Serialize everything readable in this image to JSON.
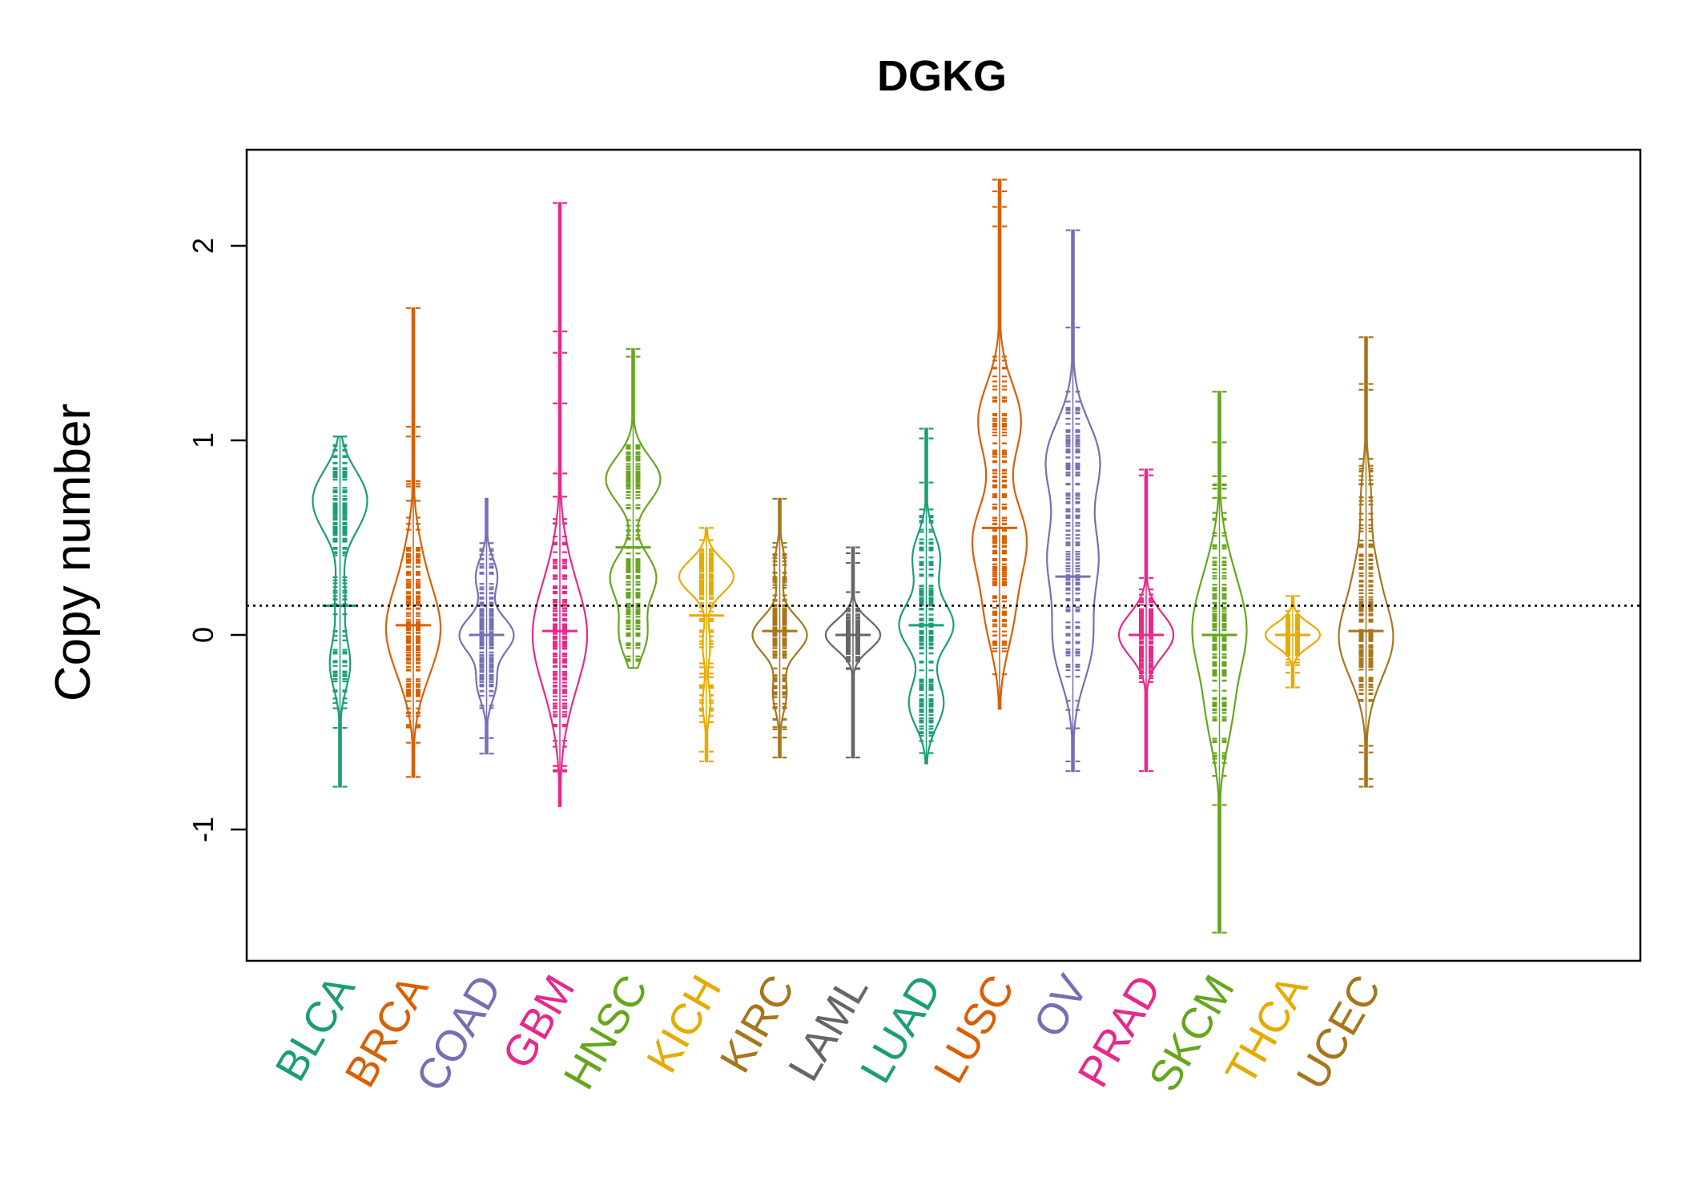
{
  "chart_data": {
    "type": "beanplot",
    "title": "DGKG",
    "xlabel": "",
    "ylabel": "Copy number",
    "ylim": [
      -1.65,
      2.5
    ],
    "yticks": [
      -1,
      0,
      1,
      2
    ],
    "reference_line": 0.15,
    "grid": false,
    "legend": "none",
    "categories": [
      "BLCA",
      "BRCA",
      "COAD",
      "GBM",
      "HNSC",
      "KICH",
      "KIRC",
      "LAML",
      "LUAD",
      "LUSC",
      "OV",
      "PRAD",
      "SKCM",
      "THCA",
      "UCEC"
    ],
    "colors": [
      "#1b9e77",
      "#d95f02",
      "#7570b3",
      "#e7298a",
      "#66a61e",
      "#e6ab02",
      "#a6761d",
      "#666666",
      "#1b9e77",
      "#d95f02",
      "#7570b3",
      "#e7298a",
      "#66a61e",
      "#e6ab02",
      "#a6761d"
    ],
    "series": [
      {
        "category": "BLCA",
        "min": -0.78,
        "max": 1.02,
        "median": 0.15,
        "outliers": [
          1.02,
          0.97,
          -0.78
        ],
        "density_modes": [
          [
            0.75,
            0.45
          ],
          [
            0.6,
            0.35
          ],
          [
            0.2,
            0.12
          ],
          [
            -0.15,
            0.25
          ]
        ]
      },
      {
        "category": "BRCA",
        "min": -0.73,
        "max": 1.68,
        "median": 0.05,
        "outliers": [
          1.68,
          1.07,
          1.02,
          -0.73
        ],
        "density_modes": [
          [
            0.0,
            1.0
          ],
          [
            0.15,
            0.7
          ],
          [
            0.4,
            0.4
          ],
          [
            -0.2,
            0.5
          ]
        ]
      },
      {
        "category": "COAD",
        "min": -0.61,
        "max": 0.7,
        "median": 0.0,
        "outliers": [
          -0.61,
          -0.53
        ],
        "density_modes": [
          [
            0.0,
            1.0
          ],
          [
            0.3,
            0.4
          ],
          [
            -0.25,
            0.35
          ]
        ]
      },
      {
        "category": "GBM",
        "min": -0.88,
        "max": 2.22,
        "median": 0.02,
        "outliers": [
          2.22,
          1.56,
          1.45,
          1.19,
          0.83
        ],
        "density_modes": [
          [
            0.0,
            1.0
          ],
          [
            0.3,
            0.3
          ],
          [
            -0.3,
            0.3
          ]
        ]
      },
      {
        "category": "HNSC",
        "min": -0.17,
        "max": 1.47,
        "median": 0.45,
        "outliers": [
          1.47,
          1.43
        ],
        "density_modes": [
          [
            0.8,
            0.6
          ],
          [
            0.3,
            0.5
          ],
          [
            0.0,
            0.3
          ]
        ]
      },
      {
        "category": "KICH",
        "min": -0.65,
        "max": 0.55,
        "median": 0.1,
        "outliers": [
          0.55,
          -0.6,
          -0.65
        ],
        "density_modes": [
          [
            0.3,
            0.7
          ],
          [
            -0.05,
            0.1
          ],
          [
            -0.35,
            0.1
          ]
        ]
      },
      {
        "category": "KIRC",
        "min": -0.63,
        "max": 0.7,
        "median": 0.02,
        "outliers": [
          0.7,
          -0.63
        ],
        "density_modes": [
          [
            0.0,
            1.0
          ],
          [
            0.35,
            0.2
          ],
          [
            -0.3,
            0.25
          ]
        ]
      },
      {
        "category": "LAML",
        "min": -0.63,
        "max": 0.45,
        "median": 0.0,
        "outliers": [
          0.45,
          0.42,
          0.37,
          0.22,
          -0.63
        ],
        "density_modes": [
          [
            0.0,
            1.0
          ]
        ]
      },
      {
        "category": "LUAD",
        "min": -0.66,
        "max": 1.06,
        "median": 0.05,
        "outliers": [
          1.06,
          1.01
        ],
        "density_modes": [
          [
            0.05,
            0.7
          ],
          [
            0.4,
            0.35
          ],
          [
            -0.35,
            0.45
          ]
        ]
      },
      {
        "category": "LUSC",
        "min": -0.38,
        "max": 2.34,
        "median": 0.55,
        "outliers": [
          2.34,
          2.28,
          2.2,
          2.1
        ],
        "density_modes": [
          [
            0.5,
            0.6
          ],
          [
            1.1,
            0.5
          ],
          [
            0.1,
            0.3
          ]
        ]
      },
      {
        "category": "OV",
        "min": -0.7,
        "max": 2.08,
        "median": 0.3,
        "outliers": [
          2.08,
          1.58,
          -0.48,
          -0.65,
          -0.7
        ],
        "density_modes": [
          [
            0.9,
            0.5
          ],
          [
            0.4,
            0.45
          ],
          [
            -0.05,
            0.35
          ]
        ]
      },
      {
        "category": "PRAD",
        "min": -0.7,
        "max": 0.85,
        "median": 0.0,
        "outliers": [
          0.85,
          0.82,
          -0.7
        ],
        "density_modes": [
          [
            0.0,
            1.0
          ]
        ]
      },
      {
        "category": "SKCM",
        "min": -1.53,
        "max": 1.25,
        "median": 0.0,
        "outliers": [
          1.25,
          0.99,
          0.77,
          -1.53
        ],
        "density_modes": [
          [
            0.0,
            0.8
          ],
          [
            0.3,
            0.35
          ],
          [
            -0.4,
            0.4
          ]
        ]
      },
      {
        "category": "THCA",
        "min": -0.27,
        "max": 0.2,
        "median": 0.0,
        "outliers": [
          0.2,
          -0.27
        ],
        "density_modes": [
          [
            0.0,
            1.0
          ]
        ]
      },
      {
        "category": "UCEC",
        "min": -0.78,
        "max": 1.53,
        "median": 0.02,
        "outliers": [
          1.53,
          1.29,
          1.26,
          -0.57,
          -0.74,
          -0.78
        ],
        "density_modes": [
          [
            0.0,
            0.9
          ],
          [
            0.3,
            0.4
          ],
          [
            0.7,
            0.2
          ],
          [
            -0.2,
            0.3
          ]
        ]
      }
    ]
  }
}
